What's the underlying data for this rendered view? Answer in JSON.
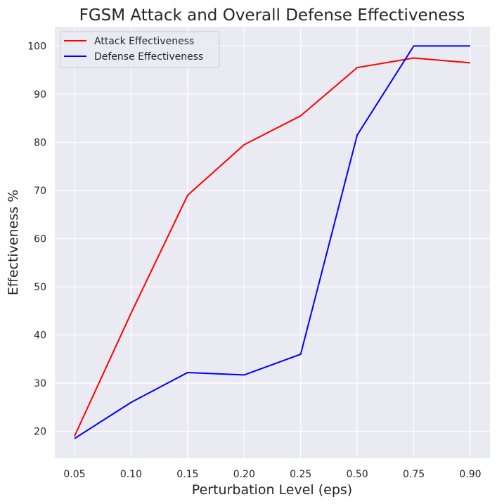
{
  "chart_data": {
    "type": "line",
    "title": "FGSM Attack and Overall Defense Effectiveness",
    "xlabel": "Perturbation Level (eps)",
    "ylabel": "Effectiveness %",
    "categories": [
      "0.05",
      "0.10",
      "0.15",
      "0.20",
      "0.25",
      "0.50",
      "0.75",
      "0.90"
    ],
    "yticks": [
      20,
      30,
      40,
      50,
      60,
      70,
      80,
      90,
      100
    ],
    "ylim": [
      14.4,
      104
    ],
    "grid": true,
    "legend_position": "upper-left",
    "series": [
      {
        "name": "Attack Effectiveness",
        "color": "#ff0000",
        "values": [
          19.0,
          44.5,
          69.0,
          79.5,
          85.5,
          95.5,
          97.5,
          96.5
        ]
      },
      {
        "name": "Defense Effectiveness",
        "color": "#0000ff",
        "values": [
          18.5,
          26.0,
          32.2,
          31.7,
          36.0,
          81.5,
          100.0,
          100.0
        ]
      }
    ],
    "background_color": "#eaeaf2",
    "grid_color": "#ffffff"
  }
}
